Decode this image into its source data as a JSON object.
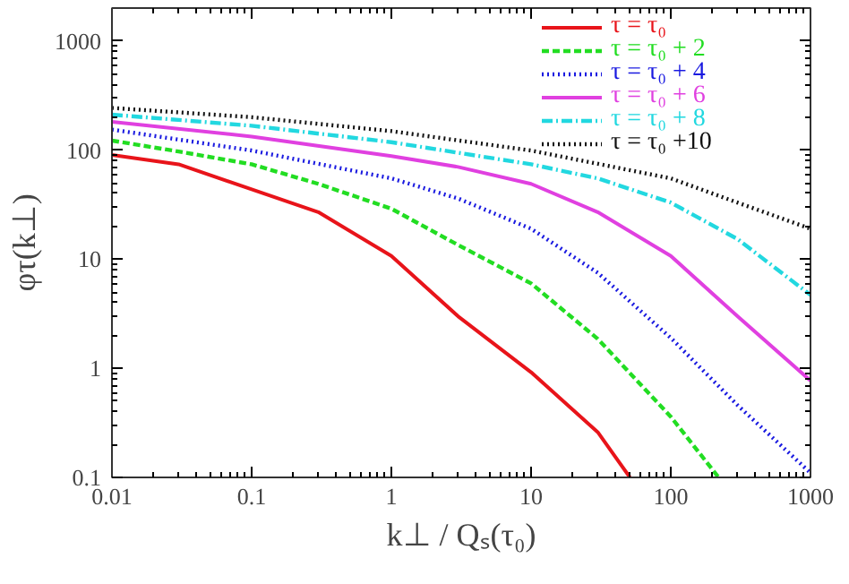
{
  "chart_data": {
    "type": "line",
    "xlabel": "k⊥ / Qₛ(τ₀)",
    "ylabel": "φτ(k⊥)",
    "log": "xy",
    "grid": false,
    "legend": "top right",
    "marker": "none",
    "xlim": [
      0.01,
      1000
    ],
    "ylim": [
      0.1,
      2000
    ],
    "xticks": [
      0.01,
      0.1,
      1,
      10,
      100,
      1000
    ],
    "yticks": [
      0.1,
      1,
      10,
      100,
      1000
    ],
    "series": [
      {
        "name": "τ = τ₀",
        "color": "#e8141a",
        "line_style": "solid",
        "x": [
          0.01,
          0.03,
          0.1,
          0.3,
          1,
          3,
          10,
          30,
          51
        ],
        "values": [
          90,
          74,
          43.6,
          27,
          10.7,
          3.0,
          0.92,
          0.26,
          0.1
        ]
      },
      {
        "name": "τ = τ₀ + 2",
        "color": "#22dd22",
        "line_style": "dashed",
        "x": [
          0.01,
          0.03,
          0.1,
          0.3,
          1,
          3,
          10,
          30,
          100,
          220
        ],
        "values": [
          122,
          97,
          74,
          49,
          29,
          13.5,
          6.0,
          1.86,
          0.36,
          0.1
        ]
      },
      {
        "name": "τ = τ₀ + 4",
        "color": "#1a1ae0",
        "line_style": "dotted",
        "x": [
          0.01,
          0.1,
          1,
          3,
          10,
          30,
          100,
          300,
          1000
        ],
        "values": [
          154,
          99,
          55,
          36,
          19,
          7.5,
          1.9,
          0.46,
          0.11
        ]
      },
      {
        "name": "τ = τ₀ + 6",
        "color": "#e040e0",
        "line_style": "solid",
        "x": [
          0.01,
          0.1,
          1,
          3,
          10,
          30,
          100,
          300,
          1000
        ],
        "values": [
          181,
          133,
          88,
          70,
          49,
          27,
          10.7,
          3.0,
          0.77
        ]
      },
      {
        "name": "τ = τ₀ + 8",
        "color": "#22d8e0",
        "line_style": "dashdot",
        "x": [
          0.01,
          0.1,
          1,
          10,
          30,
          100,
          300,
          1000
        ],
        "values": [
          211,
          167,
          118,
          74,
          55,
          33,
          15.3,
          4.7
        ]
      },
      {
        "name": "τ = τ₀ +10",
        "color": "#111111",
        "line_style": "dotted",
        "x": [
          0.01,
          0.1,
          1,
          10,
          100,
          300,
          1000
        ],
        "values": [
          243,
          200,
          149,
          99,
          55,
          33,
          19
        ]
      }
    ]
  }
}
